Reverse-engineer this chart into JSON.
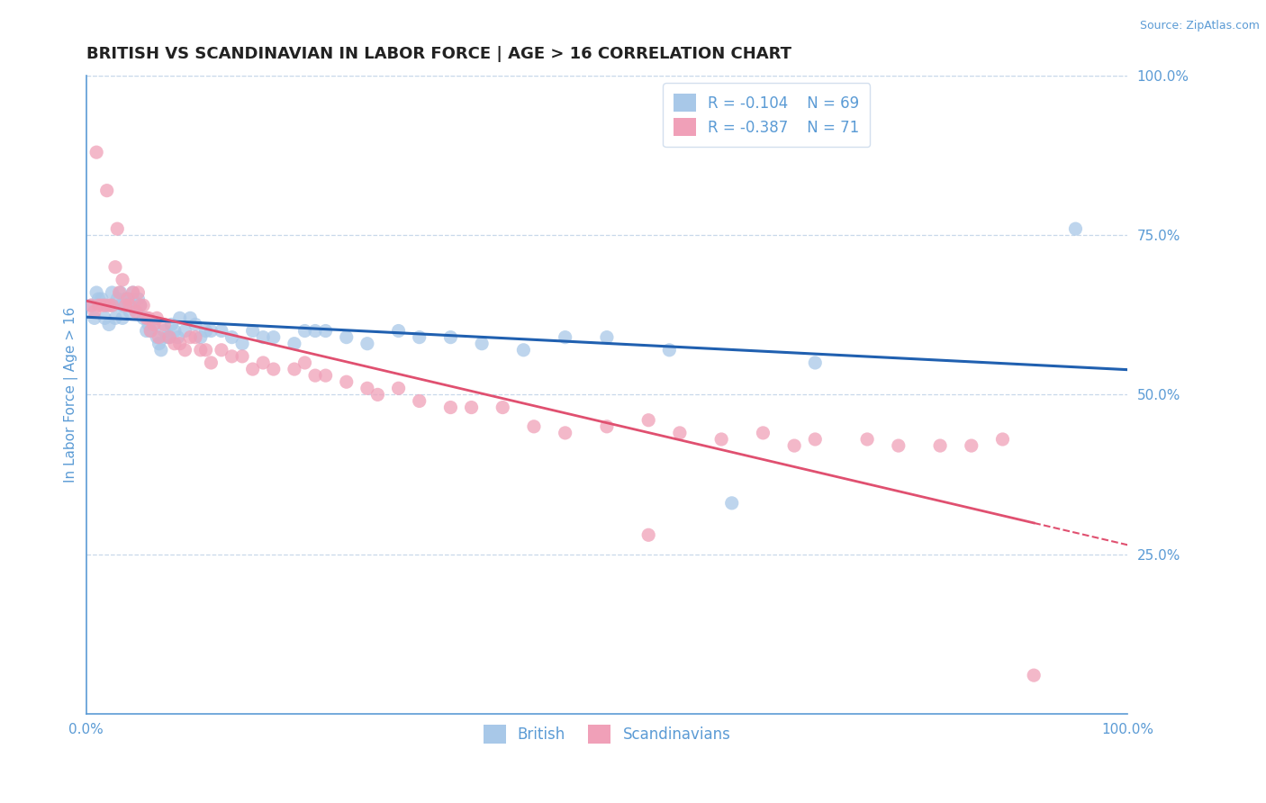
{
  "title": "BRITISH VS SCANDINAVIAN IN LABOR FORCE | AGE > 16 CORRELATION CHART",
  "source_text": "Source: ZipAtlas.com",
  "ylabel": "In Labor Force | Age > 16",
  "xlim": [
    0.0,
    1.0
  ],
  "ylim": [
    0.0,
    1.0
  ],
  "ytick_labels": [
    "25.0%",
    "50.0%",
    "75.0%",
    "100.0%"
  ],
  "ytick_values": [
    0.25,
    0.5,
    0.75,
    1.0
  ],
  "title_color": "#222222",
  "title_fontsize": 13,
  "axis_color": "#5b9bd5",
  "tick_color": "#5b9bd5",
  "grid_color": "#c8d8ea",
  "background_color": "#ffffff",
  "british_color": "#a8c8e8",
  "scandinavian_color": "#f0a0b8",
  "british_line_color": "#2060b0",
  "scandinavian_line_color": "#e05070",
  "legend_r1": "R = -0.104",
  "legend_n1": "N = 69",
  "legend_r2": "R = -0.387",
  "legend_n2": "N = 71",
  "legend_label1": "British",
  "legend_label2": "Scandinavians",
  "british_x": [
    0.005,
    0.008,
    0.01,
    0.012,
    0.015,
    0.018,
    0.02,
    0.022,
    0.025,
    0.025,
    0.028,
    0.03,
    0.032,
    0.033,
    0.035,
    0.035,
    0.038,
    0.04,
    0.04,
    0.042,
    0.045,
    0.045,
    0.048,
    0.05,
    0.052,
    0.055,
    0.058,
    0.06,
    0.062,
    0.065,
    0.068,
    0.07,
    0.072,
    0.075,
    0.078,
    0.08,
    0.082,
    0.085,
    0.088,
    0.09,
    0.095,
    0.1,
    0.105,
    0.11,
    0.115,
    0.12,
    0.13,
    0.14,
    0.15,
    0.16,
    0.17,
    0.18,
    0.2,
    0.21,
    0.22,
    0.23,
    0.25,
    0.27,
    0.3,
    0.32,
    0.35,
    0.38,
    0.42,
    0.46,
    0.5,
    0.56,
    0.62,
    0.7,
    0.95
  ],
  "british_y": [
    0.64,
    0.62,
    0.66,
    0.65,
    0.65,
    0.62,
    0.64,
    0.61,
    0.66,
    0.64,
    0.62,
    0.65,
    0.64,
    0.66,
    0.64,
    0.62,
    0.65,
    0.65,
    0.64,
    0.63,
    0.66,
    0.65,
    0.63,
    0.65,
    0.64,
    0.62,
    0.6,
    0.61,
    0.6,
    0.61,
    0.59,
    0.58,
    0.57,
    0.6,
    0.59,
    0.59,
    0.61,
    0.6,
    0.59,
    0.62,
    0.6,
    0.62,
    0.61,
    0.59,
    0.6,
    0.6,
    0.6,
    0.59,
    0.58,
    0.6,
    0.59,
    0.59,
    0.58,
    0.6,
    0.6,
    0.6,
    0.59,
    0.58,
    0.6,
    0.59,
    0.59,
    0.58,
    0.57,
    0.59,
    0.59,
    0.57,
    0.33,
    0.55,
    0.76
  ],
  "scandinavian_x": [
    0.005,
    0.008,
    0.01,
    0.012,
    0.015,
    0.018,
    0.02,
    0.022,
    0.025,
    0.028,
    0.03,
    0.032,
    0.035,
    0.038,
    0.04,
    0.042,
    0.045,
    0.048,
    0.05,
    0.052,
    0.055,
    0.058,
    0.06,
    0.062,
    0.065,
    0.068,
    0.07,
    0.075,
    0.08,
    0.085,
    0.09,
    0.095,
    0.1,
    0.105,
    0.11,
    0.115,
    0.12,
    0.13,
    0.14,
    0.15,
    0.16,
    0.17,
    0.18,
    0.2,
    0.21,
    0.22,
    0.23,
    0.25,
    0.27,
    0.28,
    0.3,
    0.32,
    0.35,
    0.37,
    0.4,
    0.43,
    0.46,
    0.5,
    0.54,
    0.57,
    0.61,
    0.65,
    0.68,
    0.7,
    0.75,
    0.78,
    0.82,
    0.85,
    0.88,
    0.91,
    0.54
  ],
  "scandinavian_y": [
    0.64,
    0.63,
    0.88,
    0.64,
    0.64,
    0.64,
    0.82,
    0.64,
    0.64,
    0.7,
    0.76,
    0.66,
    0.68,
    0.64,
    0.65,
    0.64,
    0.66,
    0.63,
    0.66,
    0.64,
    0.64,
    0.62,
    0.62,
    0.6,
    0.61,
    0.62,
    0.59,
    0.61,
    0.59,
    0.58,
    0.58,
    0.57,
    0.59,
    0.59,
    0.57,
    0.57,
    0.55,
    0.57,
    0.56,
    0.56,
    0.54,
    0.55,
    0.54,
    0.54,
    0.55,
    0.53,
    0.53,
    0.52,
    0.51,
    0.5,
    0.51,
    0.49,
    0.48,
    0.48,
    0.48,
    0.45,
    0.44,
    0.45,
    0.46,
    0.44,
    0.43,
    0.44,
    0.42,
    0.43,
    0.43,
    0.42,
    0.42,
    0.42,
    0.43,
    0.06,
    0.28
  ]
}
